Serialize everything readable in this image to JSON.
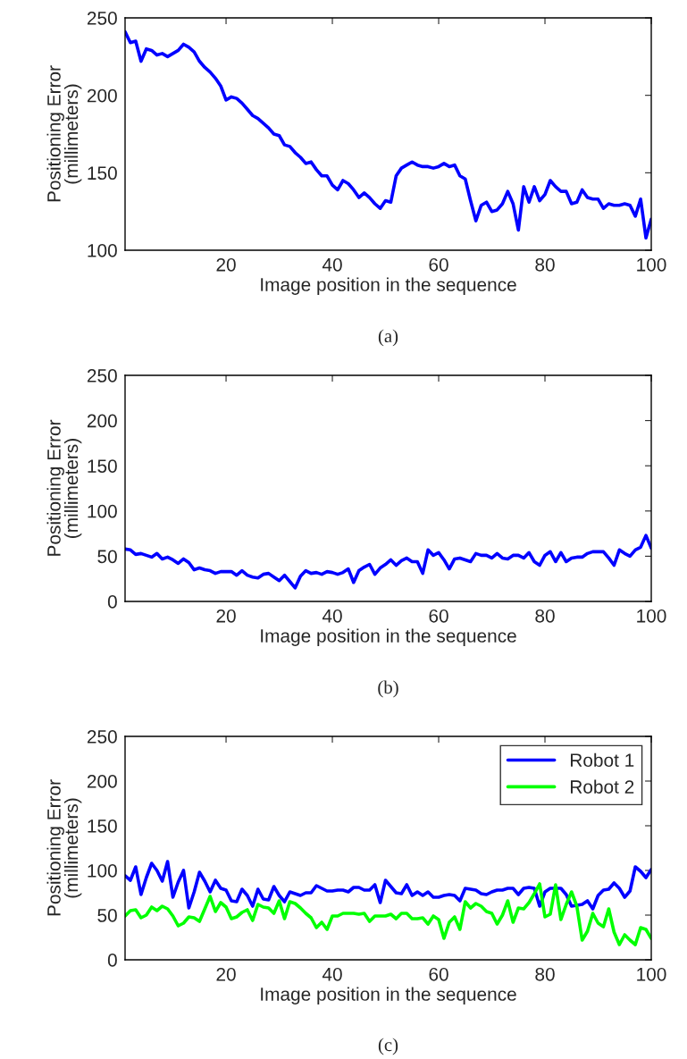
{
  "chart_data": [
    {
      "type": "line",
      "xlabel": "Image position in the sequence",
      "ylabel": "Positioning Error\n(millimeters)",
      "annotations": [
        "(a)"
      ],
      "xlim": [
        1,
        100
      ],
      "ylim": [
        100,
        250
      ],
      "xticks": [
        20,
        40,
        60,
        80,
        100
      ],
      "yticks": [
        100,
        150,
        200,
        250
      ],
      "legend": false,
      "x": [
        1,
        2,
        3,
        4,
        5,
        6,
        7,
        8,
        9,
        10,
        11,
        12,
        13,
        14,
        15,
        16,
        17,
        18,
        19,
        20,
        21,
        22,
        23,
        24,
        25,
        26,
        27,
        28,
        29,
        30,
        31,
        32,
        33,
        34,
        35,
        36,
        37,
        38,
        39,
        40,
        41,
        42,
        43,
        44,
        45,
        46,
        47,
        48,
        49,
        50,
        51,
        52,
        53,
        54,
        55,
        56,
        57,
        58,
        59,
        60,
        61,
        62,
        63,
        64,
        65,
        66,
        67,
        68,
        69,
        70,
        71,
        72,
        73,
        74,
        75,
        76,
        77,
        78,
        79,
        80,
        81,
        82,
        83,
        84,
        85,
        86,
        87,
        88,
        89,
        90,
        91,
        92,
        93,
        94,
        95,
        96,
        97,
        98,
        99,
        100
      ],
      "series": [
        {
          "color": "#0000ff",
          "values": [
            241,
            234,
            235,
            222,
            230,
            229,
            226,
            227,
            225,
            227,
            229,
            233,
            231,
            228,
            222,
            218,
            215,
            211,
            206,
            197,
            199,
            198,
            195,
            191,
            187,
            185,
            182,
            179,
            175,
            174,
            168,
            167,
            163,
            160,
            156,
            157,
            152,
            148,
            148,
            142,
            139,
            145,
            143,
            139,
            134,
            137,
            134,
            130,
            127,
            132,
            131,
            148,
            153,
            155,
            157,
            155,
            154,
            154,
            153,
            154,
            156,
            154,
            155,
            148,
            146,
            132,
            119,
            129,
            131,
            125,
            126,
            130,
            138,
            130,
            113,
            141,
            131,
            141,
            132,
            136,
            145,
            141,
            138,
            138,
            130,
            131,
            139,
            134,
            133,
            133,
            127,
            130,
            129,
            129,
            130,
            129,
            122,
            133,
            108,
            120
          ]
        }
      ]
    },
    {
      "type": "line",
      "xlabel": "Image position in the sequence",
      "ylabel": "Positioning Error\n(millimeters)",
      "annotations": [
        "(b)"
      ],
      "xlim": [
        1,
        100
      ],
      "ylim": [
        0,
        250
      ],
      "xticks": [
        20,
        40,
        60,
        80,
        100
      ],
      "yticks": [
        0,
        50,
        100,
        150,
        200,
        250
      ],
      "legend": false,
      "x": [
        1,
        2,
        3,
        4,
        5,
        6,
        7,
        8,
        9,
        10,
        11,
        12,
        13,
        14,
        15,
        16,
        17,
        18,
        19,
        20,
        21,
        22,
        23,
        24,
        25,
        26,
        27,
        28,
        29,
        30,
        31,
        32,
        33,
        34,
        35,
        36,
        37,
        38,
        39,
        40,
        41,
        42,
        43,
        44,
        45,
        46,
        47,
        48,
        49,
        50,
        51,
        52,
        53,
        54,
        55,
        56,
        57,
        58,
        59,
        60,
        61,
        62,
        63,
        64,
        65,
        66,
        67,
        68,
        69,
        70,
        71,
        72,
        73,
        74,
        75,
        76,
        77,
        78,
        79,
        80,
        81,
        82,
        83,
        84,
        85,
        86,
        87,
        88,
        89,
        90,
        91,
        92,
        93,
        94,
        95,
        96,
        97,
        98,
        99,
        100
      ],
      "series": [
        {
          "color": "#0000ff",
          "values": [
            58,
            57,
            52,
            53,
            51,
            49,
            53,
            47,
            49,
            46,
            42,
            47,
            43,
            35,
            37,
            35,
            34,
            31,
            33,
            33,
            33,
            29,
            34,
            29,
            27,
            26,
            30,
            31,
            27,
            23,
            29,
            22,
            15,
            28,
            34,
            31,
            32,
            30,
            33,
            32,
            30,
            32,
            36,
            21,
            34,
            38,
            41,
            30,
            37,
            41,
            46,
            40,
            45,
            48,
            44,
            44,
            31,
            57,
            51,
            54,
            46,
            36,
            47,
            48,
            46,
            44,
            53,
            51,
            51,
            48,
            53,
            48,
            47,
            51,
            51,
            48,
            54,
            44,
            40,
            51,
            55,
            44,
            54,
            44,
            48,
            49,
            49,
            53,
            55,
            55,
            55,
            48,
            40,
            57,
            53,
            50,
            57,
            60,
            73,
            59
          ]
        }
      ]
    },
    {
      "type": "line",
      "xlabel": "Image position in the sequence",
      "ylabel": "Positioning Error\n(millimeters)",
      "annotations": [
        "(c)"
      ],
      "xlim": [
        1,
        100
      ],
      "ylim": [
        0,
        250
      ],
      "xticks": [
        20,
        40,
        60,
        80,
        100
      ],
      "yticks": [
        0,
        50,
        100,
        150,
        200,
        250
      ],
      "legend": "top right",
      "x": [
        1,
        2,
        3,
        4,
        5,
        6,
        7,
        8,
        9,
        10,
        11,
        12,
        13,
        14,
        15,
        16,
        17,
        18,
        19,
        20,
        21,
        22,
        23,
        24,
        25,
        26,
        27,
        28,
        29,
        30,
        31,
        32,
        33,
        34,
        35,
        36,
        37,
        38,
        39,
        40,
        41,
        42,
        43,
        44,
        45,
        46,
        47,
        48,
        49,
        50,
        51,
        52,
        53,
        54,
        55,
        56,
        57,
        58,
        59,
        60,
        61,
        62,
        63,
        64,
        65,
        66,
        67,
        68,
        69,
        70,
        71,
        72,
        73,
        74,
        75,
        76,
        77,
        78,
        79,
        80,
        81,
        82,
        83,
        84,
        85,
        86,
        87,
        88,
        89,
        90,
        91,
        92,
        93,
        94,
        95,
        96,
        97,
        98,
        99,
        100
      ],
      "series": [
        {
          "name": "Robot 1",
          "color": "#0000ff",
          "values": [
            94,
            89,
            104,
            73,
            92,
            108,
            100,
            88,
            110,
            70,
            87,
            100,
            58,
            76,
            98,
            88,
            76,
            89,
            80,
            78,
            66,
            65,
            79,
            72,
            60,
            79,
            68,
            67,
            82,
            72,
            65,
            76,
            74,
            72,
            75,
            75,
            83,
            80,
            77,
            77,
            78,
            78,
            76,
            81,
            81,
            78,
            78,
            84,
            64,
            89,
            82,
            75,
            74,
            84,
            72,
            76,
            72,
            76,
            70,
            70,
            72,
            73,
            72,
            66,
            80,
            79,
            78,
            74,
            73,
            76,
            78,
            78,
            80,
            80,
            73,
            80,
            81,
            80,
            60,
            76,
            80,
            80,
            80,
            73,
            60,
            61,
            62,
            66,
            57,
            72,
            78,
            79,
            86,
            80,
            70,
            77,
            104,
            99,
            92,
            101
          ]
        },
        {
          "name": "Robot 2",
          "color": "#00ff00",
          "values": [
            49,
            55,
            56,
            47,
            50,
            59,
            55,
            60,
            57,
            49,
            38,
            41,
            48,
            47,
            43,
            57,
            71,
            54,
            64,
            59,
            46,
            48,
            53,
            56,
            44,
            62,
            59,
            58,
            52,
            66,
            46,
            65,
            63,
            58,
            52,
            47,
            36,
            42,
            34,
            49,
            49,
            52,
            52,
            52,
            51,
            52,
            43,
            49,
            49,
            49,
            51,
            46,
            52,
            52,
            46,
            46,
            47,
            40,
            49,
            45,
            24,
            42,
            48,
            34,
            65,
            58,
            63,
            60,
            54,
            52,
            40,
            50,
            66,
            42,
            58,
            57,
            64,
            74,
            85,
            48,
            51,
            84,
            45,
            62,
            76,
            60,
            22,
            32,
            52,
            41,
            37,
            57,
            31,
            17,
            28,
            22,
            17,
            36,
            34,
            24
          ]
        }
      ]
    }
  ]
}
